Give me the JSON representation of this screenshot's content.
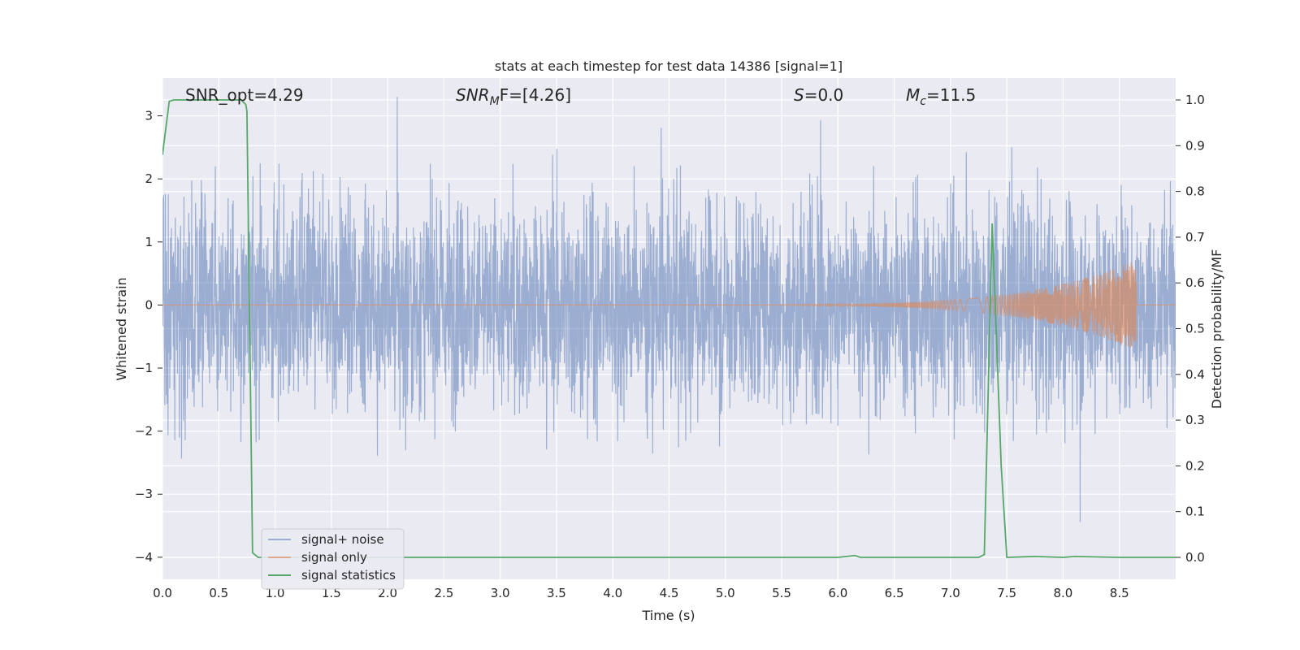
{
  "chart_data": {
    "type": "line",
    "title": "stats at each timestep for test data 14386 [signal=1]",
    "xlabel": "Time (s)",
    "ylabel_left": "Whitened strain",
    "ylabel_right": "Detection probability/MF",
    "xlim": [
      0.0,
      9.0
    ],
    "ylim_left": [
      -4.35,
      3.6
    ],
    "ylim_right": [
      -0.048,
      1.048
    ],
    "x_ticks": [
      "0.0",
      "0.5",
      "1.0",
      "1.5",
      "2.0",
      "2.5",
      "3.0",
      "3.5",
      "4.0",
      "4.5",
      "5.0",
      "5.5",
      "6.0",
      "6.5",
      "7.0",
      "7.5",
      "8.0",
      "8.5"
    ],
    "y_left_ticks": [
      "3",
      "2",
      "1",
      "0",
      "−1",
      "−2",
      "−3",
      "−4"
    ],
    "y_right_ticks": [
      "1.0",
      "0.9",
      "0.8",
      "0.7",
      "0.6",
      "0.5",
      "0.4",
      "0.3",
      "0.2",
      "0.1",
      "0.0"
    ],
    "grid": true,
    "legend_position": "lower-left",
    "annotations": {
      "snr_opt": "SNR_opt=4.29",
      "snr_mf_main": "SNR",
      "snr_mf_sub": "M",
      "snr_mf_rest": "F=[4.26]",
      "s_main": "S",
      "s_rest": "=0.0",
      "mc_main": "M",
      "mc_sub": "c",
      "mc_rest": "=11.5"
    },
    "series": [
      {
        "name": "signal+ noise",
        "color": "#4c72b0",
        "axis": "left",
        "style": "dense noise, amplitude ~±2.5, excursions to about ±3.3"
      },
      {
        "name": "signal only",
        "color": "#dd8452",
        "axis": "left",
        "style": "chirp",
        "chirp_start": 4.0,
        "chirp_end": 8.65,
        "peak_amplitude": 0.72
      },
      {
        "name": "signal statistics",
        "color": "#55a868",
        "axis": "right",
        "x": [
          0.0,
          0.01,
          0.06,
          0.1,
          0.3,
          0.5,
          0.6,
          0.7,
          0.74,
          0.75,
          0.8,
          0.85,
          1.0,
          6.0,
          6.15,
          6.2,
          7.25,
          7.3,
          7.37,
          7.45,
          7.5,
          7.75,
          8.0,
          8.1,
          8.5,
          9.0
        ],
        "y": [
          0.88,
          0.9,
          0.997,
          1.0,
          1.0,
          1.0,
          1.0,
          1.0,
          0.99,
          0.975,
          0.01,
          0.0,
          0.0,
          0.0,
          0.004,
          0.0,
          0.0,
          0.006,
          0.73,
          0.2,
          0.0,
          0.002,
          0.0,
          0.002,
          0.0,
          0.0
        ]
      }
    ]
  }
}
